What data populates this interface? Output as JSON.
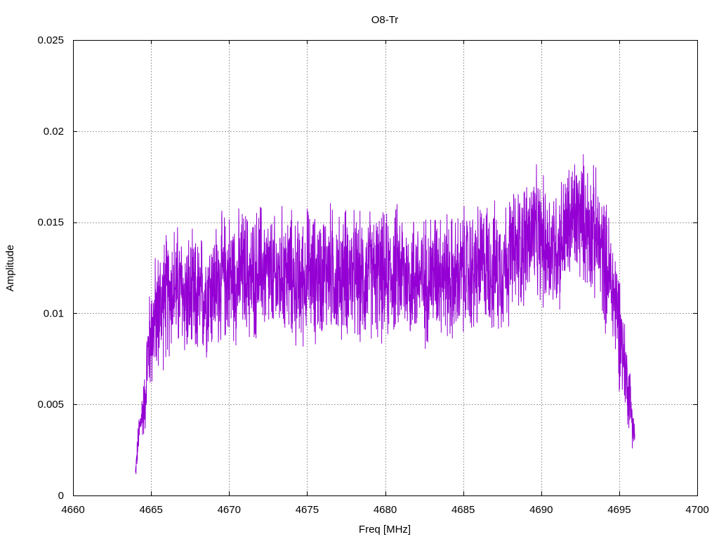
{
  "chart_data": {
    "type": "line",
    "title": "O8-Tr",
    "xlabel": "Freq [MHz]",
    "ylabel": "Amplitude",
    "xlim": [
      4660,
      4700
    ],
    "ylim": [
      0,
      0.025
    ],
    "x_ticks": [
      4660,
      4665,
      4670,
      4675,
      4680,
      4685,
      4690,
      4695,
      4700
    ],
    "x_tick_labels": [
      "4660",
      "4665",
      "4670",
      "4675",
      "4680",
      "4685",
      "4690",
      "4695",
      "4700"
    ],
    "y_ticks": [
      0,
      0.005,
      0.01,
      0.015,
      0.02,
      0.025
    ],
    "y_tick_labels": [
      "0",
      "0.005",
      "0.01",
      "0.015",
      "0.02",
      "0.025"
    ],
    "grid": true,
    "series": [
      {
        "color": "#9400d3",
        "x": [
          4664.0,
          4664.2,
          4664.4,
          4664.6,
          4664.8,
          4665.0,
          4665.3,
          4665.6,
          4665.9,
          4666.2,
          4666.5,
          4667.0,
          4667.5,
          4668.0,
          4668.5,
          4669.0,
          4669.5,
          4670.0,
          4670.5,
          4671.0,
          4671.5,
          4672.0,
          4672.5,
          4673.0,
          4673.5,
          4674.0,
          4674.5,
          4675.0,
          4675.5,
          4676.0,
          4676.5,
          4677.0,
          4677.5,
          4678.0,
          4678.5,
          4679.0,
          4679.5,
          4680.0,
          4680.5,
          4681.0,
          4681.5,
          4682.0,
          4682.5,
          4683.0,
          4683.5,
          4684.0,
          4684.5,
          4685.0,
          4685.5,
          4686.0,
          4686.5,
          4687.0,
          4687.5,
          4688.0,
          4688.5,
          4689.0,
          4689.5,
          4690.0,
          4690.5,
          4691.0,
          4691.5,
          4692.0,
          4692.5,
          4693.0,
          4693.5,
          4694.0,
          4694.5,
          4694.8,
          4695.1,
          4695.4,
          4695.7,
          4696.0
        ],
        "y": [
          0.0012,
          0.0032,
          0.0044,
          0.0051,
          0.0078,
          0.0089,
          0.0098,
          0.0104,
          0.0108,
          0.0112,
          0.0115,
          0.0111,
          0.0107,
          0.0106,
          0.0112,
          0.0114,
          0.0118,
          0.0121,
          0.0119,
          0.0123,
          0.0118,
          0.0126,
          0.0121,
          0.0117,
          0.0124,
          0.012,
          0.0115,
          0.0123,
          0.0119,
          0.0122,
          0.0125,
          0.0118,
          0.0124,
          0.012,
          0.0117,
          0.0122,
          0.0121,
          0.0118,
          0.0123,
          0.0124,
          0.0119,
          0.0121,
          0.0117,
          0.0122,
          0.0126,
          0.012,
          0.0117,
          0.0123,
          0.0121,
          0.0125,
          0.0128,
          0.0124,
          0.0126,
          0.0131,
          0.0135,
          0.014,
          0.0144,
          0.0139,
          0.0137,
          0.0136,
          0.0143,
          0.0151,
          0.0153,
          0.0149,
          0.0142,
          0.0131,
          0.0116,
          0.0105,
          0.0089,
          0.0068,
          0.0052,
          0.0032
        ],
        "noise": 0.0032
      }
    ]
  }
}
